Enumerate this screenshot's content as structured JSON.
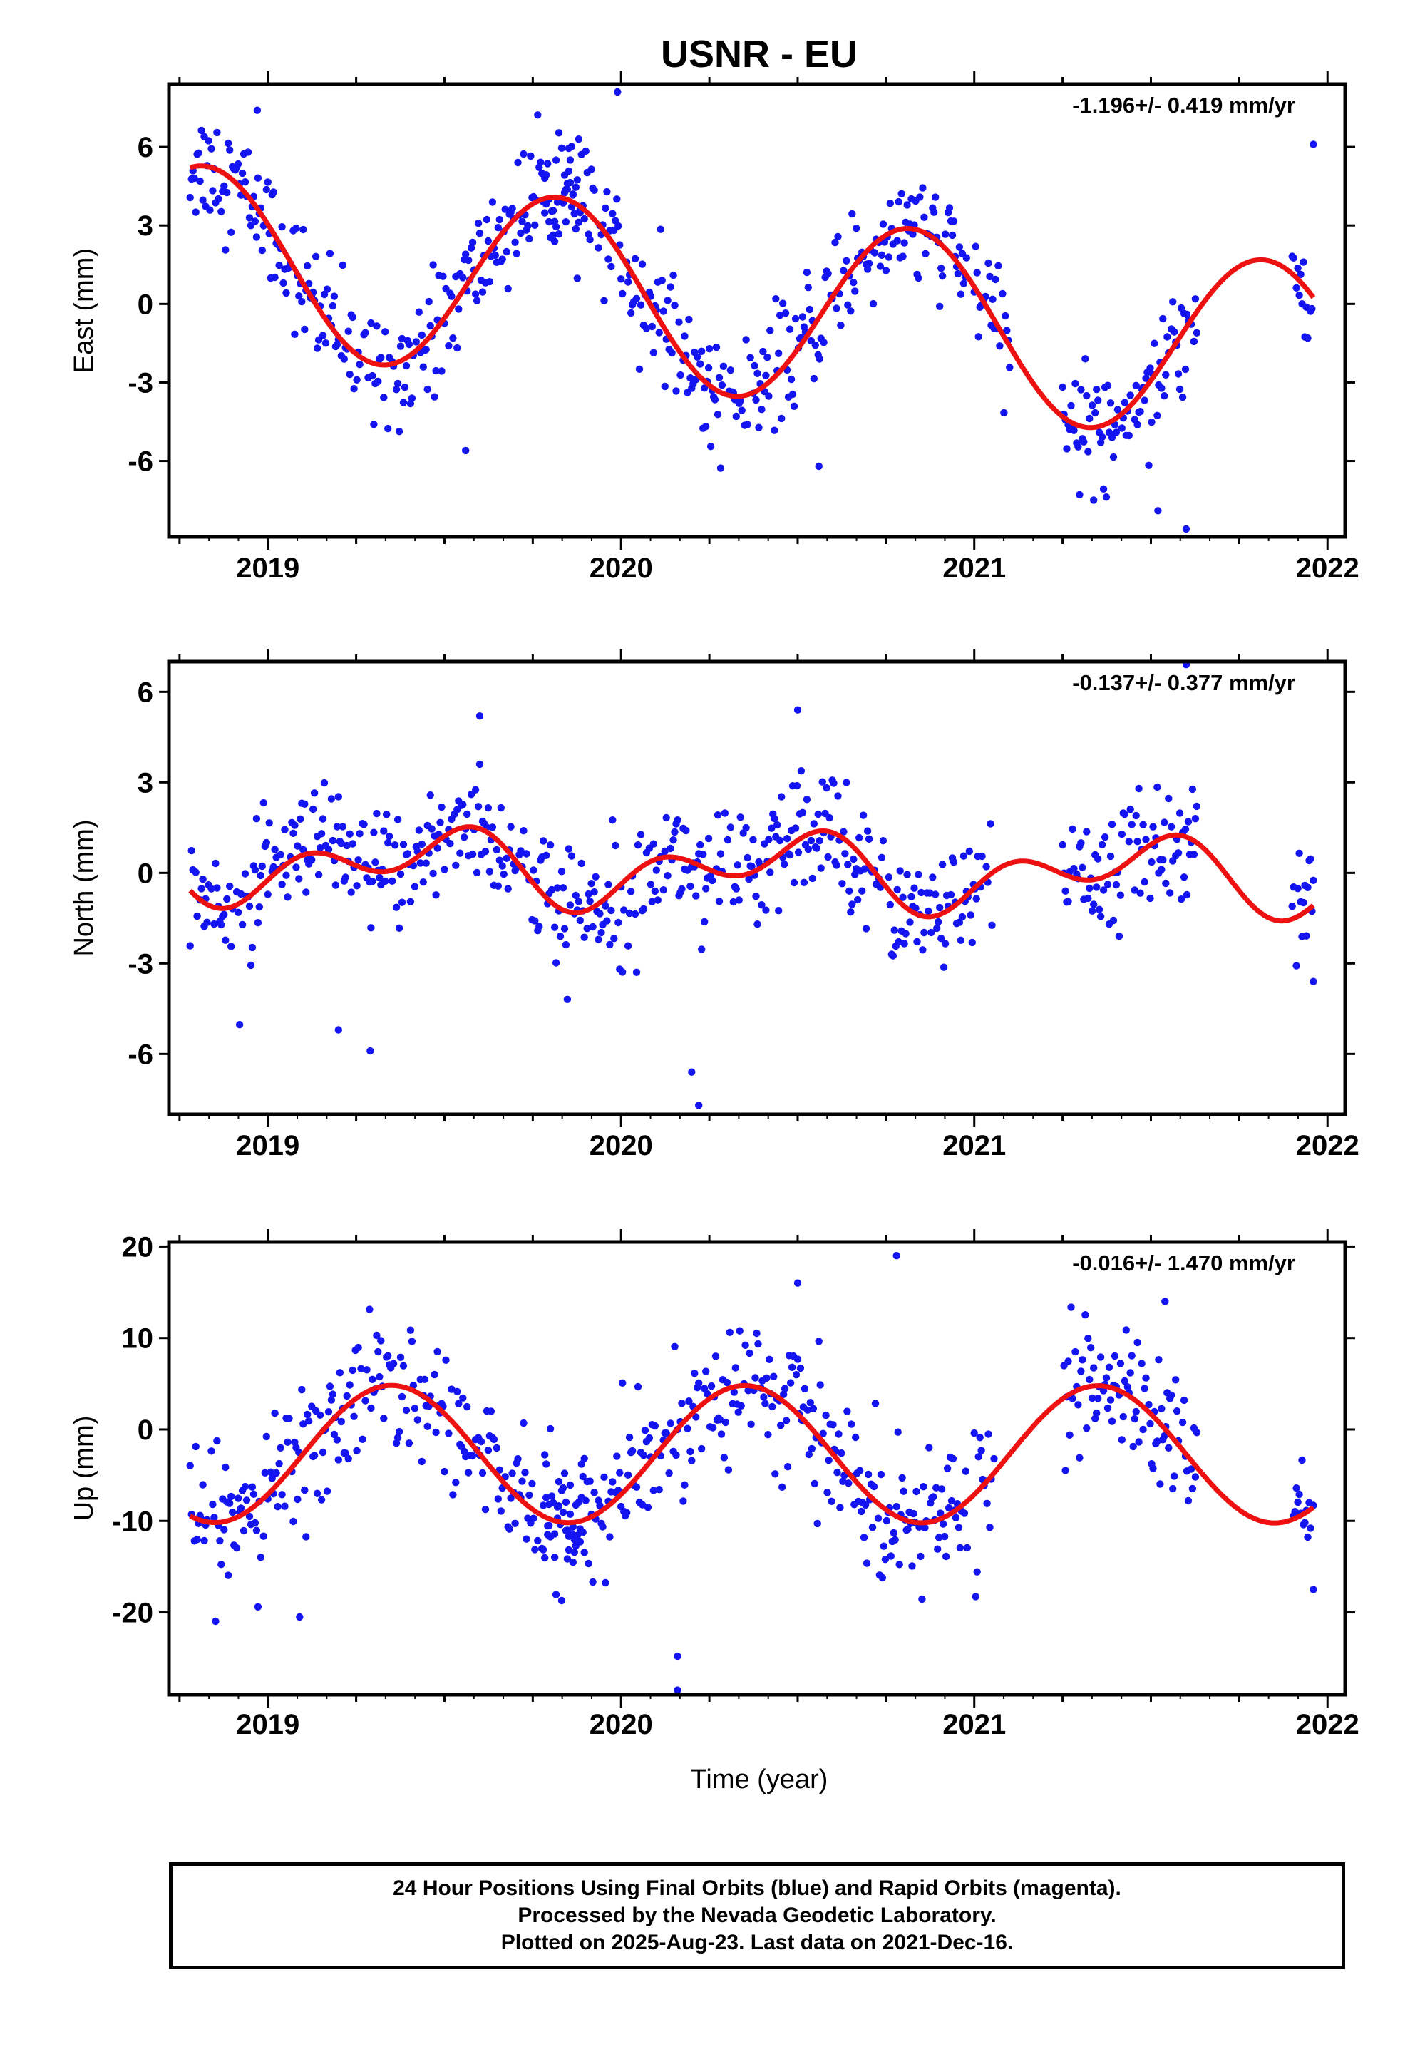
{
  "title": "USNR - EU",
  "colors": {
    "points": "#1414f0",
    "fit": "#ee1111",
    "axis": "#000000"
  },
  "caption": [
    "24 Hour Positions Using Final Orbits (blue) and Rapid Orbits (magenta).",
    "Processed by the Nevada Geodetic Laboratory.",
    "Plotted on 2025-Aug-23. Last data on 2021-Dec-16."
  ],
  "xlabel": "Time (year)",
  "chart_data": [
    {
      "type": "scatter",
      "ylabel": "East (mm)",
      "rate": "-1.196+/- 0.419 mm/yr",
      "xlim": [
        2018.72,
        2022.05
      ],
      "ylim": [
        -8.9,
        8.4
      ],
      "x_ticks": [
        2019,
        2020,
        2021,
        2022
      ],
      "y_ticks": [
        6,
        3,
        0,
        -3,
        -6
      ],
      "fit": {
        "mean": 0.0,
        "slope": -1.196,
        "a1": 3.5,
        "p1": 0.82,
        "a2": 0.0,
        "p2": 0.0
      },
      "segments": [
        [
          2018.78,
          2019.9
        ],
        [
          2019.78,
          2020.25
        ],
        [
          2020.25,
          2020.98
        ],
        [
          2021.0,
          2021.1
        ],
        [
          2021.25,
          2021.63
        ],
        [
          2021.9,
          2021.96
        ]
      ],
      "noise": 1.1,
      "outliers": [
        [
          2018.97,
          7.4
        ],
        [
          2019.56,
          -5.6
        ],
        [
          2019.99,
          8.1
        ],
        [
          2020.56,
          -6.2
        ],
        [
          2021.52,
          -7.9
        ],
        [
          2021.6,
          -8.6
        ],
        [
          2021.96,
          6.1
        ]
      ],
      "curve_range": [
        2018.78,
        2021.96
      ]
    },
    {
      "type": "scatter",
      "ylabel": "North (mm)",
      "rate": "-0.137+/- 0.377 mm/yr",
      "xlim": [
        2018.72,
        2022.05
      ],
      "ylim": [
        -8.0,
        7.0
      ],
      "x_ticks": [
        2019,
        2020,
        2021,
        2022
      ],
      "y_ticks": [
        6,
        3,
        0,
        -3,
        -6
      ],
      "fit": {
        "mean": 0.1,
        "slope": -0.137,
        "a1": 0.8,
        "p1": 0.45,
        "a2": 0.8,
        "p2": 0.1
      },
      "segments": [
        [
          2018.78,
          2020.25
        ],
        [
          2020.25,
          2021.05
        ],
        [
          2021.25,
          2021.63
        ],
        [
          2021.9,
          2021.96
        ]
      ],
      "noise": 1.0,
      "outliers": [
        [
          2019.6,
          5.2
        ],
        [
          2019.2,
          -5.2
        ],
        [
          2019.29,
          -5.9
        ],
        [
          2020.2,
          -6.6
        ],
        [
          2020.22,
          -7.7
        ],
        [
          2020.5,
          5.4
        ],
        [
          2021.6,
          6.9
        ],
        [
          2021.96,
          -3.6
        ]
      ],
      "curve_range": [
        2018.78,
        2021.96
      ]
    },
    {
      "type": "scatter",
      "ylabel": "Up (mm)",
      "rate": "-0.016+/- 1.470 mm/yr",
      "xlim": [
        2018.72,
        2022.05
      ],
      "ylim": [
        -29.0,
        20.5
      ],
      "x_ticks": [
        2019,
        2020,
        2021,
        2022
      ],
      "y_ticks": [
        20,
        10,
        0,
        -10,
        -20
      ],
      "fit": {
        "mean": -2.7,
        "slope": -0.016,
        "a1": 7.5,
        "p1": 0.35,
        "a2": 0.0,
        "p2": 0.0
      },
      "segments": [
        [
          2018.78,
          2019.9
        ],
        [
          2019.78,
          2020.98
        ],
        [
          2021.0,
          2021.06
        ],
        [
          2021.25,
          2021.63
        ],
        [
          2021.9,
          2021.96
        ]
      ],
      "noise": 3.6,
      "outliers": [
        [
          2020.16,
          -28.5
        ],
        [
          2020.16,
          -24.8
        ],
        [
          2020.78,
          19.0
        ],
        [
          2020.5,
          16.0
        ],
        [
          2021.54,
          14.0
        ],
        [
          2019.09,
          -20.5
        ],
        [
          2021.96,
          -17.5
        ]
      ],
      "curve_range": [
        2018.78,
        2021.96
      ]
    }
  ]
}
